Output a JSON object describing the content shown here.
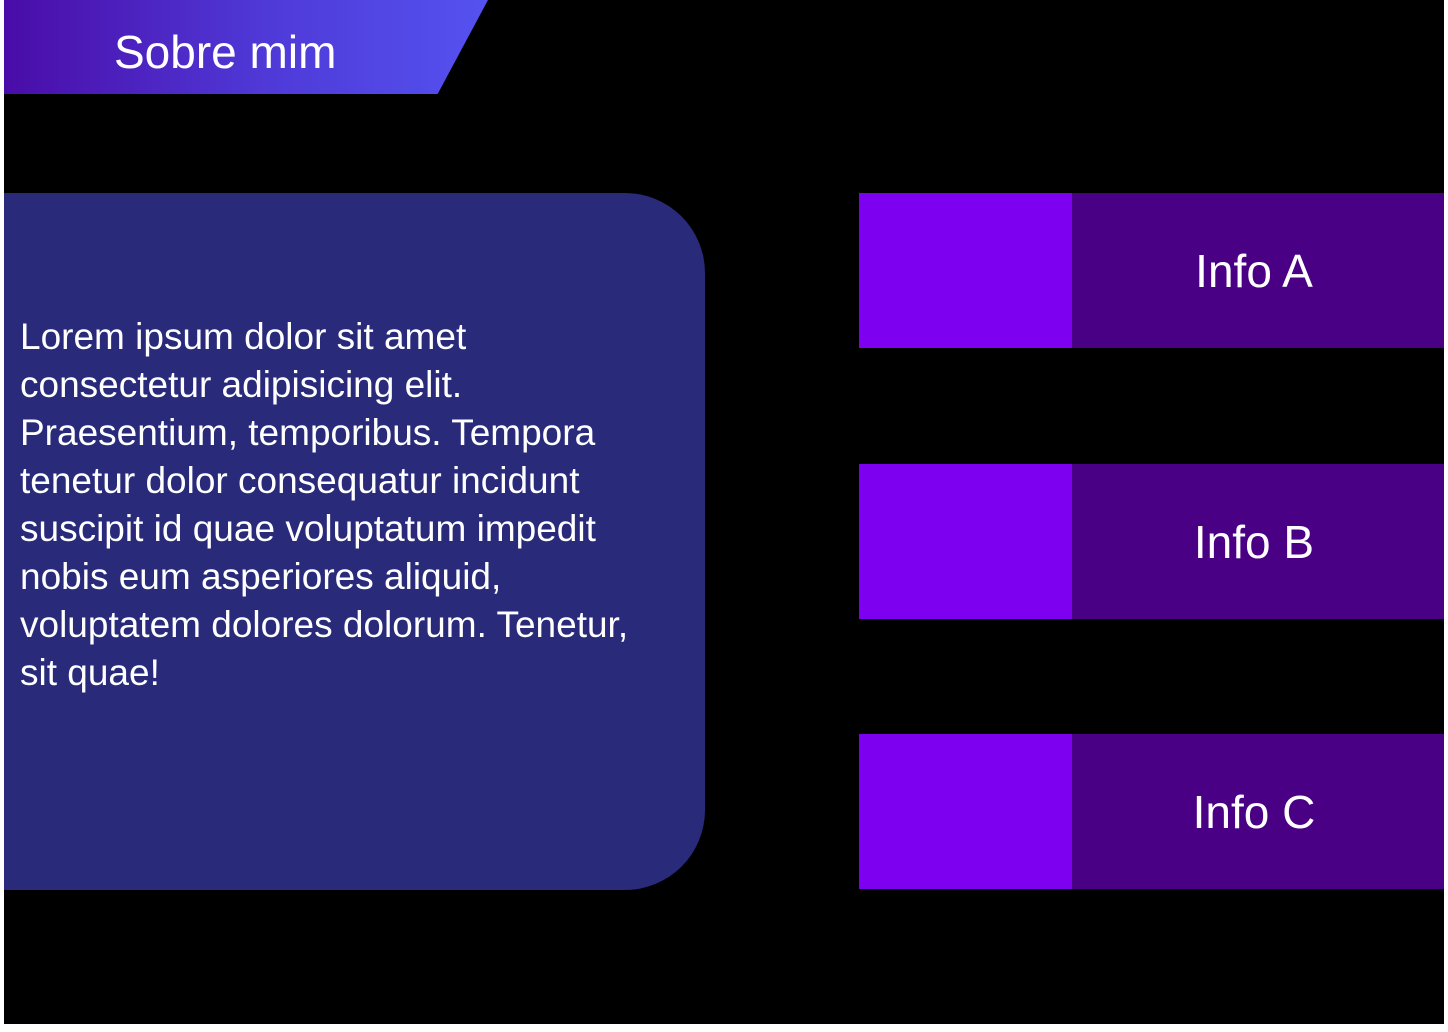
{
  "header": {
    "title": "Sobre mim"
  },
  "about": {
    "text": "Lorem ipsum dolor sit amet consectetur adipisicing elit. Praesentium, temporibus. Tempora tenetur dolor consequatur incidunt suscipit id quae voluptatum impedit nobis eum asperiores aliquid, voluptatem dolores dolorum. Tenetur, sit quae!"
  },
  "info_items": [
    {
      "label": "Info A"
    },
    {
      "label": "Info B"
    },
    {
      "label": "Info C"
    }
  ],
  "colors": {
    "background": "#000000",
    "card": "#292a7a",
    "info_swatch": "#7e00f0",
    "info_label_bg": "#4a0085",
    "header_gradient_start": "#4a0ca8",
    "header_gradient_end": "#5452f0",
    "text": "#ffffff"
  }
}
